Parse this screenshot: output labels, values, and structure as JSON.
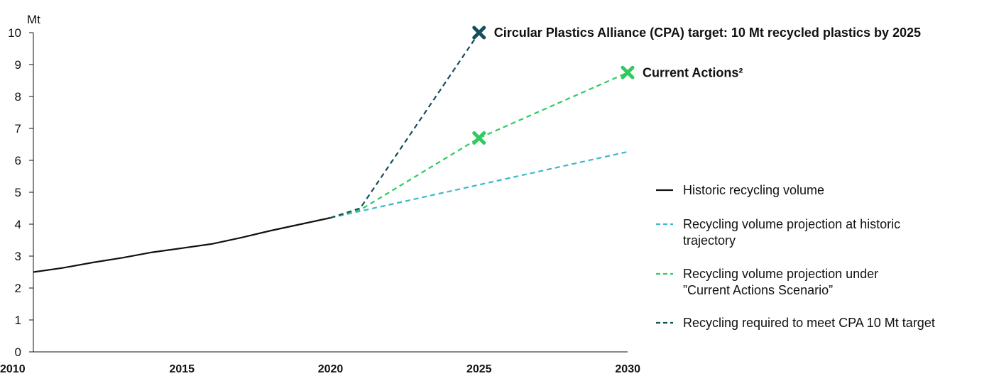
{
  "chart_data": {
    "type": "line",
    "y_unit": "Mt",
    "ylim": [
      0,
      10
    ],
    "xlim": [
      2010,
      2030
    ],
    "x_ticks": [
      2010,
      2015,
      2020,
      2025,
      2030
    ],
    "y_ticks": [
      0,
      1,
      2,
      3,
      4,
      5,
      6,
      7,
      8,
      9,
      10
    ],
    "grid": false,
    "legend_position": "right",
    "series": [
      {
        "name": "Historic recycling volume",
        "style": "solid",
        "color": "#111111",
        "points": [
          [
            2010,
            2.5
          ],
          [
            2011,
            2.63
          ],
          [
            2012,
            2.8
          ],
          [
            2013,
            2.95
          ],
          [
            2014,
            3.12
          ],
          [
            2015,
            3.25
          ],
          [
            2016,
            3.38
          ],
          [
            2017,
            3.58
          ],
          [
            2018,
            3.8
          ],
          [
            2019,
            4.0
          ],
          [
            2020,
            4.2
          ]
        ]
      },
      {
        "name": "Recycling volume projection at historic trajectory",
        "style": "dashed",
        "color": "#3bb8c9",
        "points": [
          [
            2020,
            4.2
          ],
          [
            2030,
            6.27
          ]
        ]
      },
      {
        "name": "Recycling volume projection under ”Current Actions Scenario”",
        "style": "dashed",
        "color": "#2ecc5f",
        "points": [
          [
            2020,
            4.2
          ],
          [
            2021,
            4.45
          ],
          [
            2025,
            6.7
          ],
          [
            2030,
            8.75
          ]
        ]
      },
      {
        "name": "Recycling required to meet CPA 10 Mt target",
        "style": "dashed",
        "color": "#134f5c",
        "points": [
          [
            2020,
            4.2
          ],
          [
            2021,
            4.5
          ],
          [
            2025,
            10.0
          ]
        ]
      }
    ],
    "markers": [
      {
        "x": 2025,
        "y": 10.0,
        "color": "#134f5c",
        "label": "Circular Plastics Alliance (CPA) target: 10 Mt recycled plastics by 2025"
      },
      {
        "x": 2030,
        "y": 8.75,
        "color": "#2ecc5f",
        "label": "Current Actions²"
      },
      {
        "x": 2025,
        "y": 6.7,
        "color": "#2ecc5f",
        "label": ""
      }
    ],
    "legend": [
      {
        "lines": [
          "Historic recycling volume"
        ],
        "style": "solid",
        "color": "#111111"
      },
      {
        "lines": [
          "Recycling volume projection at historic",
          "trajectory"
        ],
        "style": "dashed",
        "color": "#3bb8c9"
      },
      {
        "lines": [
          "Recycling volume projection under",
          "”Current Actions Scenario”"
        ],
        "style": "dashed",
        "color": "#2ecc5f"
      },
      {
        "lines": [
          "Recycling required to meet CPA 10 Mt target"
        ],
        "style": "dashed",
        "color": "#134f5c"
      }
    ]
  }
}
